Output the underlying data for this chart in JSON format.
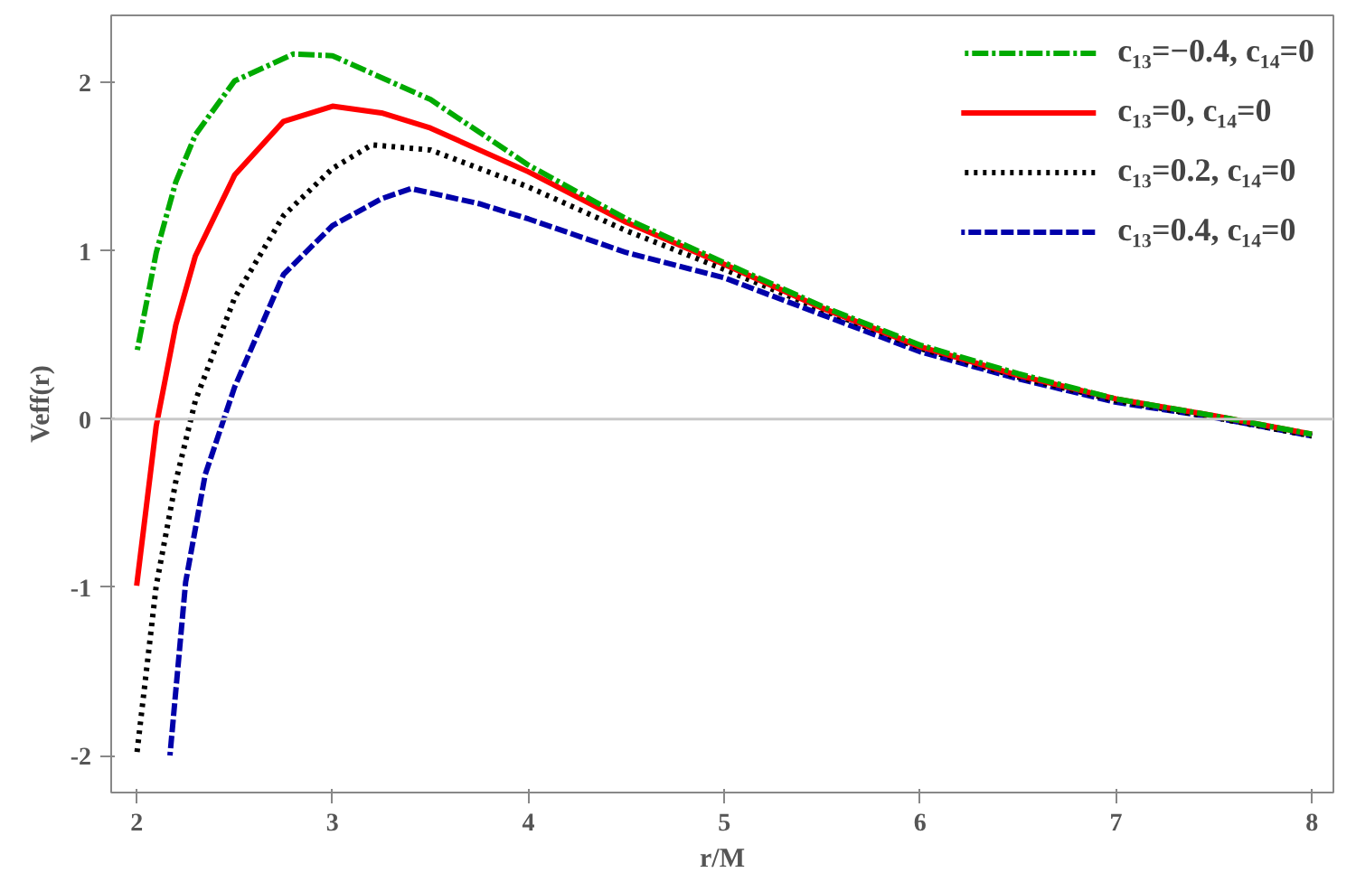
{
  "chart_data": {
    "type": "line",
    "xlabel": "r/M",
    "ylabel": "Veff(r)",
    "xlim": [
      1.87,
      8.11
    ],
    "ylim": [
      -2.22,
      2.4
    ],
    "xticks": [
      2,
      3,
      4,
      5,
      6,
      7,
      8
    ],
    "yticks": [
      -2,
      -1,
      0,
      1,
      2
    ],
    "grid": false,
    "legend": "top right",
    "marker": "none",
    "ref_lines": [
      {
        "axis": "y",
        "value": 0,
        "color": "#c8c8c8"
      }
    ],
    "series": [
      {
        "name": "c₁₃=−0.4, c₁₄=0",
        "color": "#00aa00",
        "line_style": "dashdot",
        "x": [
          2,
          2.1,
          2.2,
          2.3,
          2.5,
          2.8,
          3,
          3.5,
          4,
          4.5,
          5,
          5.5,
          6,
          6.5,
          7,
          7.5,
          8
        ],
        "values": [
          0.39,
          0.99,
          1.41,
          1.69,
          2.01,
          2.17,
          2.16,
          1.9,
          1.51,
          1.19,
          0.93,
          0.67,
          0.44,
          0.27,
          0.12,
          0.02,
          -0.09
        ]
      },
      {
        "name": "c₁₃=0, c₁₄=0",
        "color": "#ff0000",
        "line_style": "solid",
        "x": [
          2,
          2.1,
          2.2,
          2.3,
          2.5,
          2.75,
          3,
          3.25,
          3.5,
          4,
          4.5,
          5,
          5.5,
          6,
          6.5,
          7,
          7.5,
          8
        ],
        "values": [
          -0.99,
          -0.04,
          0.56,
          0.97,
          1.45,
          1.77,
          1.86,
          1.82,
          1.73,
          1.47,
          1.17,
          0.92,
          0.66,
          0.43,
          0.26,
          0.12,
          0.02,
          -0.09
        ]
      },
      {
        "name": "c₁₃=0.2, c₁₄=0",
        "color": "#000000",
        "line_style": "dotted",
        "x": [
          2,
          2.1,
          2.2,
          2.3,
          2.5,
          2.75,
          3,
          3.2,
          3.5,
          4,
          4.5,
          5,
          5.5,
          6,
          6.5,
          7,
          7.5,
          8
        ],
        "values": [
          -2.0,
          -0.99,
          -0.37,
          0.11,
          0.72,
          1.21,
          1.49,
          1.63,
          1.6,
          1.38,
          1.12,
          0.89,
          0.65,
          0.42,
          0.25,
          0.11,
          0.01,
          -0.1
        ]
      },
      {
        "name": "c₁₃=0.4, c₁₄=0",
        "color": "#0000aa",
        "line_style": "dashed",
        "x": [
          2.17,
          2.25,
          2.35,
          2.5,
          2.75,
          3,
          3.25,
          3.4,
          3.75,
          4,
          4.5,
          5,
          5.5,
          6,
          6.5,
          7,
          7.5,
          8
        ],
        "values": [
          -2.0,
          -0.97,
          -0.33,
          0.19,
          0.86,
          1.15,
          1.31,
          1.37,
          1.28,
          1.19,
          0.99,
          0.84,
          0.62,
          0.4,
          0.24,
          0.1,
          0.01,
          -0.1
        ]
      }
    ]
  }
}
